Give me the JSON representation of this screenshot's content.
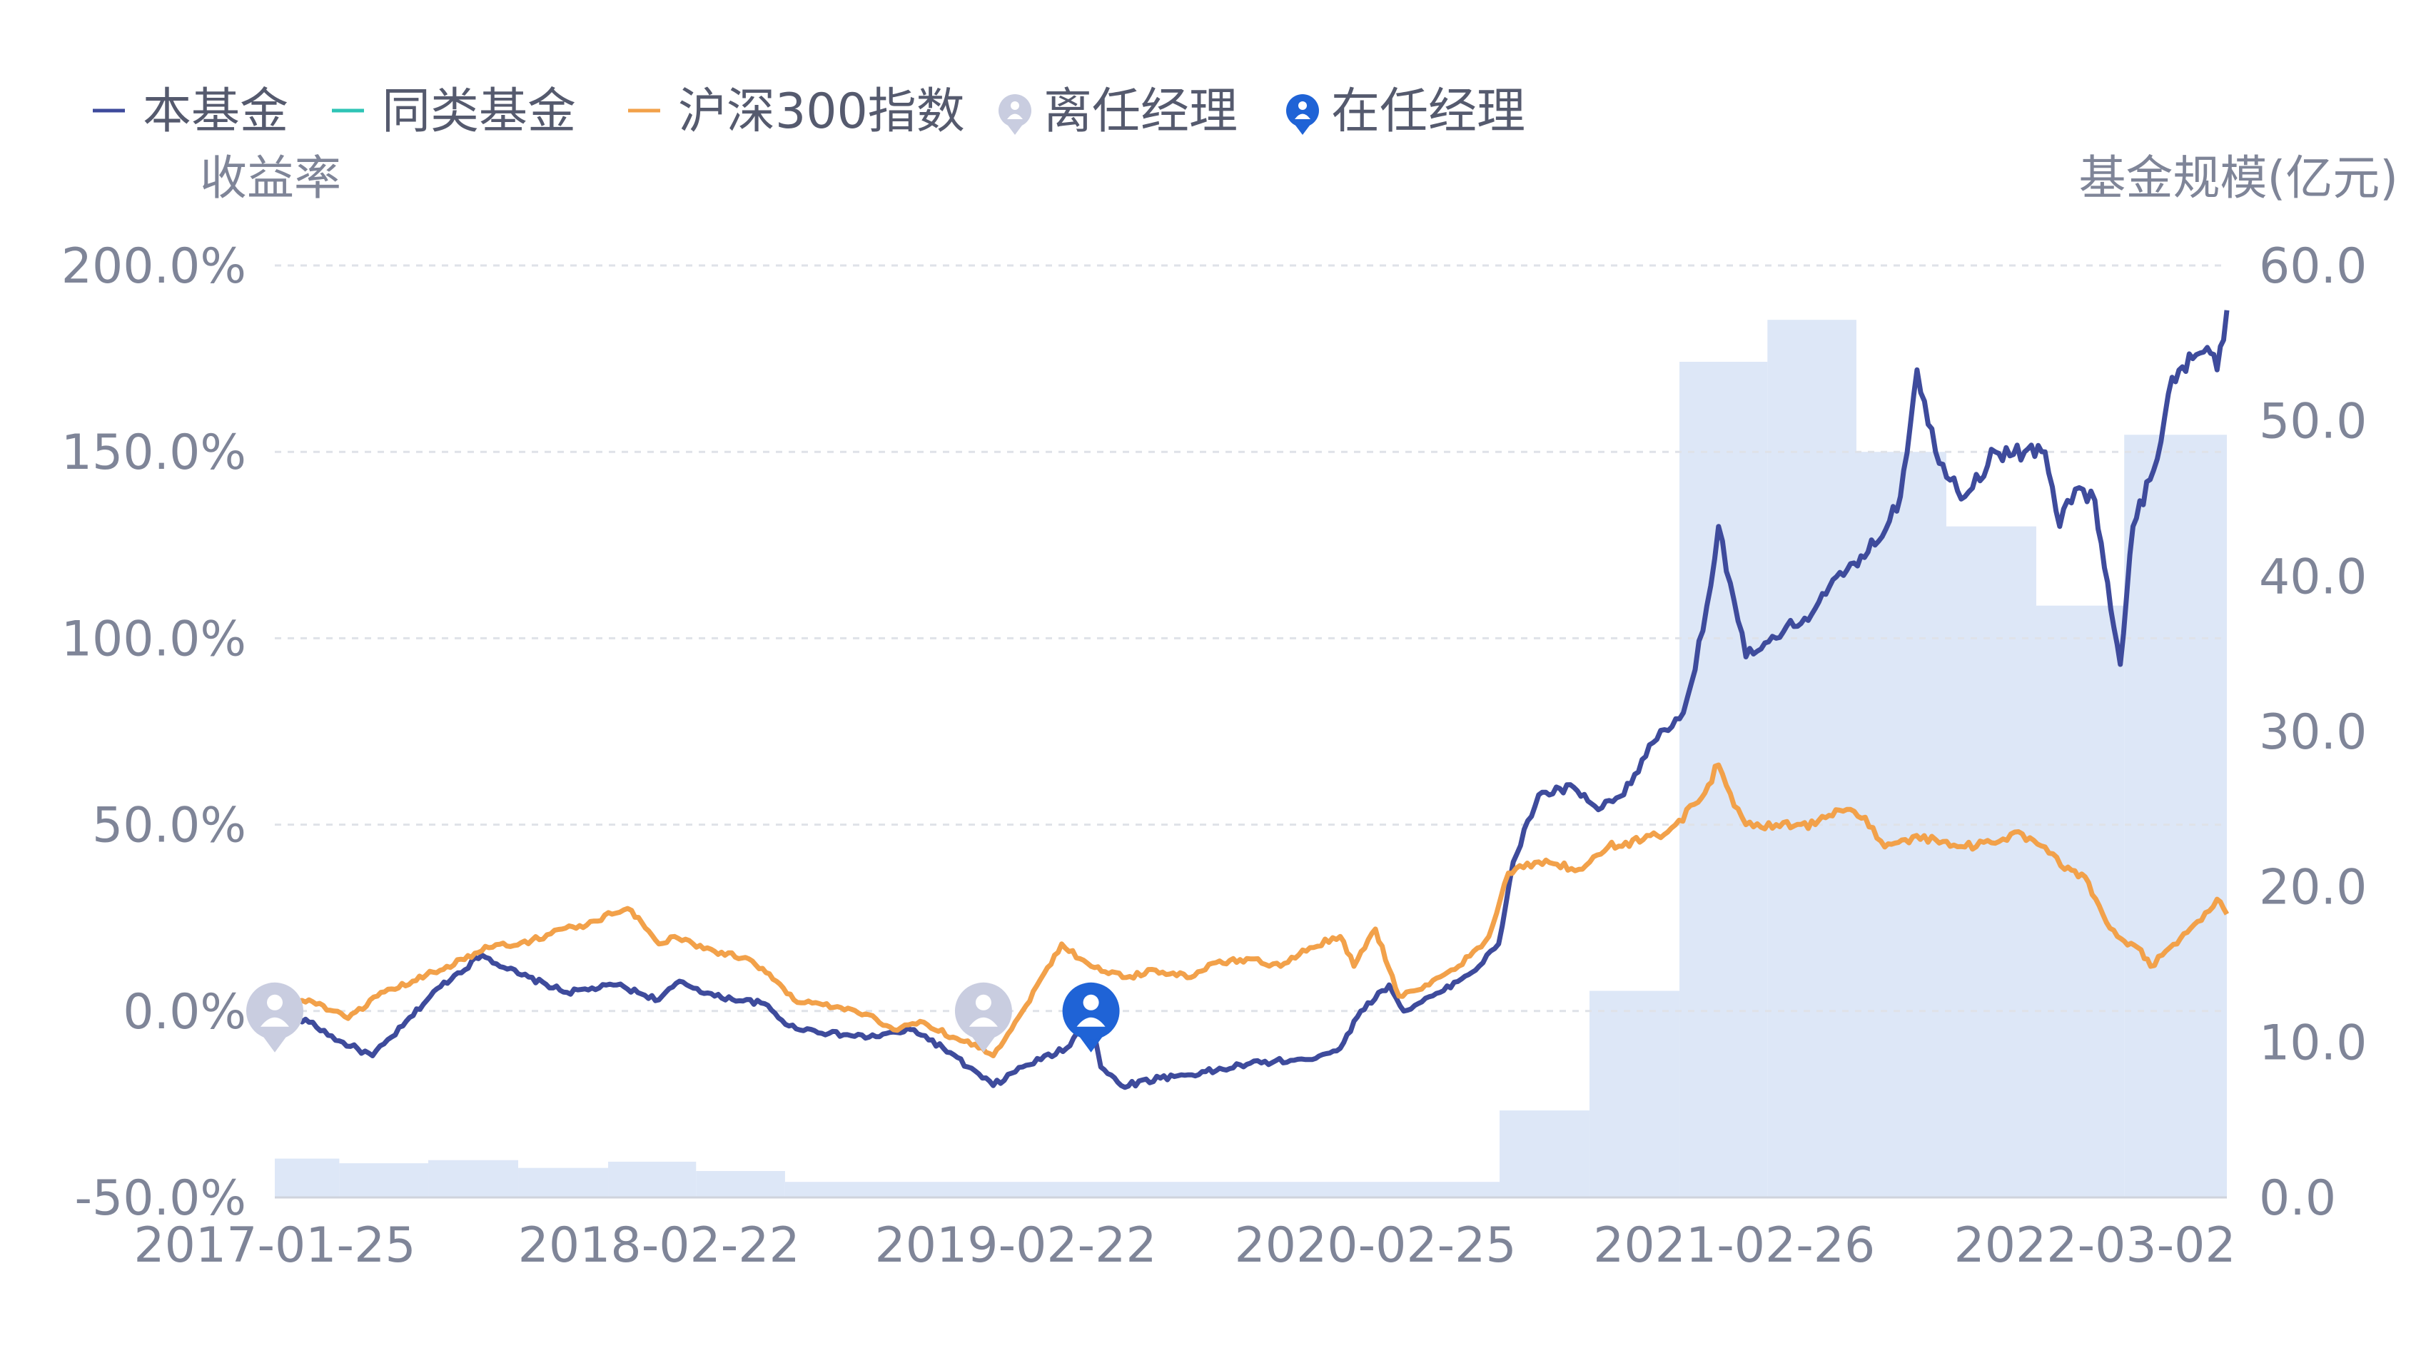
{
  "legend": [
    {
      "key": "fund",
      "label": "本基金",
      "color": "#3e4b9c",
      "type": "line"
    },
    {
      "key": "peer",
      "label": "同类基金",
      "color": "#2ec4b6",
      "type": "line"
    },
    {
      "key": "index",
      "label": "沪深300指数",
      "color": "#f2a14a",
      "type": "line"
    },
    {
      "key": "former",
      "label": "离任经理",
      "color": "#c9cde0",
      "type": "marker"
    },
    {
      "key": "current",
      "label": "在任经理",
      "color": "#1f63d6",
      "type": "marker"
    }
  ],
  "chart_data": {
    "type": "line",
    "left_axis_label": "收益率",
    "right_axis_label": "基金规模(亿元)",
    "left_axis": {
      "min": -50,
      "max": 200,
      "ticks": [
        "200.0%",
        "150.0%",
        "100.0%",
        "50.0%",
        "0.0%",
        "-50.0%"
      ],
      "tick_values": [
        200,
        150,
        100,
        50,
        0,
        -50
      ]
    },
    "right_axis": {
      "min": 0,
      "max": 60,
      "ticks": [
        "60.0",
        "50.0",
        "40.0",
        "30.0",
        "20.0",
        "10.0",
        "0.0"
      ],
      "tick_values": [
        60,
        50,
        40,
        30,
        20,
        10,
        0
      ]
    },
    "x_ticks": [
      "2017-01-25",
      "2018-02-22",
      "2019-02-22",
      "2020-02-25",
      "2021-02-26",
      "2022-03-02"
    ],
    "x_tick_dates": [
      "2017-01-25",
      "2018-02-22",
      "2019-02-22",
      "2020-02-25",
      "2021-02-26",
      "2022-03-02"
    ],
    "x_range": [
      "2017-01-25",
      "2022-07-15"
    ],
    "grid": true,
    "legend_position": "top-left",
    "series": [
      {
        "name": "本基金",
        "color": "#3e4b9c",
        "points": [
          [
            "2017-01-25",
            0
          ],
          [
            "2017-03-01",
            -3
          ],
          [
            "2017-04-01",
            -8
          ],
          [
            "2017-05-05",
            -12
          ],
          [
            "2017-06-05",
            -4
          ],
          [
            "2017-07-10",
            6
          ],
          [
            "2017-08-25",
            15
          ],
          [
            "2017-10-01",
            10
          ],
          [
            "2017-11-20",
            5
          ],
          [
            "2018-01-10",
            7
          ],
          [
            "2018-02-22",
            3
          ],
          [
            "2018-03-15",
            8
          ],
          [
            "2018-04-20",
            4
          ],
          [
            "2018-06-10",
            2
          ],
          [
            "2018-07-05",
            -4
          ],
          [
            "2018-08-15",
            -6
          ],
          [
            "2018-09-25",
            -7
          ],
          [
            "2018-11-10",
            -5
          ],
          [
            "2018-12-10",
            -10
          ],
          [
            "2019-01-04",
            -15
          ],
          [
            "2019-01-30",
            -20
          ],
          [
            "2019-03-01",
            -15
          ],
          [
            "2019-04-15",
            -10
          ],
          [
            "2019-05-10",
            -1
          ],
          [
            "2019-05-20",
            -15
          ],
          [
            "2019-06-10",
            -20
          ],
          [
            "2019-07-20",
            -18
          ],
          [
            "2019-09-15",
            -16
          ],
          [
            "2019-10-20",
            -14
          ],
          [
            "2019-12-15",
            -13
          ],
          [
            "2020-01-20",
            -10
          ],
          [
            "2020-02-10",
            0
          ],
          [
            "2020-03-10",
            7
          ],
          [
            "2020-03-25",
            0
          ],
          [
            "2020-05-01",
            5
          ],
          [
            "2020-06-10",
            12
          ],
          [
            "2020-06-30",
            18
          ],
          [
            "2020-07-15",
            40
          ],
          [
            "2020-08-10",
            58
          ],
          [
            "2020-09-15",
            60
          ],
          [
            "2020-10-10",
            54
          ],
          [
            "2020-11-05",
            58
          ],
          [
            "2020-12-05",
            72
          ],
          [
            "2021-01-05",
            80
          ],
          [
            "2021-01-25",
            102
          ],
          [
            "2021-02-10",
            130
          ],
          [
            "2021-02-26",
            110
          ],
          [
            "2021-03-10",
            95
          ],
          [
            "2021-04-10",
            100
          ],
          [
            "2021-05-20",
            108
          ],
          [
            "2021-06-25",
            120
          ],
          [
            "2021-07-20",
            125
          ],
          [
            "2021-08-15",
            138
          ],
          [
            "2021-09-01",
            172
          ],
          [
            "2021-09-20",
            150
          ],
          [
            "2021-10-20",
            138
          ],
          [
            "2021-11-20",
            150
          ],
          [
            "2021-12-20",
            150
          ],
          [
            "2022-01-10",
            150
          ],
          [
            "2022-01-25",
            130
          ],
          [
            "2022-02-10",
            140
          ],
          [
            "2022-03-02",
            137
          ],
          [
            "2022-03-15",
            115
          ],
          [
            "2022-03-28",
            93
          ],
          [
            "2022-04-10",
            130
          ],
          [
            "2022-05-01",
            145
          ],
          [
            "2022-05-20",
            170
          ],
          [
            "2022-06-10",
            175
          ],
          [
            "2022-06-25",
            178
          ],
          [
            "2022-07-05",
            172
          ],
          [
            "2022-07-15",
            188
          ]
        ]
      },
      {
        "name": "同类基金",
        "color": "#2ec4b6",
        "points": []
      },
      {
        "name": "沪深300指数",
        "color": "#f2a14a",
        "points": [
          [
            "2017-01-25",
            2
          ],
          [
            "2017-03-01",
            3
          ],
          [
            "2017-04-10",
            -2
          ],
          [
            "2017-05-10",
            4
          ],
          [
            "2017-06-15",
            8
          ],
          [
            "2017-07-20",
            12
          ],
          [
            "2017-09-01",
            17
          ],
          [
            "2017-10-15",
            19
          ],
          [
            "2017-11-15",
            22
          ],
          [
            "2017-12-10",
            23
          ],
          [
            "2018-01-05",
            26
          ],
          [
            "2018-01-25",
            27
          ],
          [
            "2018-02-22",
            18
          ],
          [
            "2018-03-10",
            20
          ],
          [
            "2018-04-20",
            16
          ],
          [
            "2018-05-25",
            14
          ],
          [
            "2018-06-15",
            10
          ],
          [
            "2018-07-10",
            3
          ],
          [
            "2018-08-20",
            1
          ],
          [
            "2018-09-25",
            -1
          ],
          [
            "2018-10-20",
            -5
          ],
          [
            "2018-11-20",
            -3
          ],
          [
            "2018-12-20",
            -7
          ],
          [
            "2019-01-04",
            -8
          ],
          [
            "2019-01-30",
            -12
          ],
          [
            "2019-03-01",
            0
          ],
          [
            "2019-04-10",
            18
          ],
          [
            "2019-05-10",
            12
          ],
          [
            "2019-06-15",
            9
          ],
          [
            "2019-07-15",
            11
          ],
          [
            "2019-08-20",
            9
          ],
          [
            "2019-09-15",
            13
          ],
          [
            "2019-10-20",
            14
          ],
          [
            "2019-11-20",
            12
          ],
          [
            "2019-12-20",
            17
          ],
          [
            "2020-01-20",
            20
          ],
          [
            "2020-02-03",
            12
          ],
          [
            "2020-02-25",
            22
          ],
          [
            "2020-03-20",
            4
          ],
          [
            "2020-04-20",
            7
          ],
          [
            "2020-05-20",
            12
          ],
          [
            "2020-06-20",
            20
          ],
          [
            "2020-07-10",
            37
          ],
          [
            "2020-08-10",
            40
          ],
          [
            "2020-09-20",
            38
          ],
          [
            "2020-10-20",
            44
          ],
          [
            "2020-11-25",
            46
          ],
          [
            "2020-12-20",
            48
          ],
          [
            "2021-01-20",
            56
          ],
          [
            "2021-02-10",
            66
          ],
          [
            "2021-02-26",
            55
          ],
          [
            "2021-03-10",
            50
          ],
          [
            "2021-04-10",
            50
          ],
          [
            "2021-05-20",
            50
          ],
          [
            "2021-06-10",
            54
          ],
          [
            "2021-07-10",
            52
          ],
          [
            "2021-07-30",
            44
          ],
          [
            "2021-08-20",
            46
          ],
          [
            "2021-09-20",
            46
          ],
          [
            "2021-10-20",
            44
          ],
          [
            "2021-11-20",
            45
          ],
          [
            "2021-12-10",
            48
          ],
          [
            "2022-01-10",
            44
          ],
          [
            "2022-01-30",
            38
          ],
          [
            "2022-02-20",
            36
          ],
          [
            "2022-03-10",
            26
          ],
          [
            "2022-03-25",
            20
          ],
          [
            "2022-04-15",
            17
          ],
          [
            "2022-04-28",
            12
          ],
          [
            "2022-05-10",
            15
          ],
          [
            "2022-05-25",
            18
          ],
          [
            "2022-06-15",
            24
          ],
          [
            "2022-07-05",
            30
          ],
          [
            "2022-07-15",
            26
          ]
        ]
      }
    ],
    "fund_size_bars": [
      {
        "start": "2017-01-25",
        "end": "2017-04-01",
        "value": 2.5
      },
      {
        "start": "2017-04-01",
        "end": "2017-07-01",
        "value": 2.2
      },
      {
        "start": "2017-07-01",
        "end": "2017-10-01",
        "value": 2.4
      },
      {
        "start": "2017-10-01",
        "end": "2018-01-01",
        "value": 1.9
      },
      {
        "start": "2018-01-01",
        "end": "2018-04-01",
        "value": 2.3
      },
      {
        "start": "2018-04-01",
        "end": "2018-07-01",
        "value": 1.7
      },
      {
        "start": "2018-07-01",
        "end": "2020-07-01",
        "value": 1.0
      },
      {
        "start": "2020-07-01",
        "end": "2020-10-01",
        "value": 5.6
      },
      {
        "start": "2020-10-01",
        "end": "2021-01-01",
        "value": 13.3
      },
      {
        "start": "2021-01-01",
        "end": "2021-04-01",
        "value": 53.8
      },
      {
        "start": "2021-04-01",
        "end": "2021-07-01",
        "value": 56.5
      },
      {
        "start": "2021-07-01",
        "end": "2021-10-01",
        "value": 48.0
      },
      {
        "start": "2021-10-01",
        "end": "2022-01-01",
        "value": 43.2
      },
      {
        "start": "2022-01-01",
        "end": "2022-04-01",
        "value": 38.1
      },
      {
        "start": "2022-04-01",
        "end": "2022-07-15",
        "value": 49.1
      }
    ],
    "manager_markers": [
      {
        "date": "2017-01-25",
        "type": "former"
      },
      {
        "date": "2019-01-20",
        "type": "former"
      },
      {
        "date": "2019-05-10",
        "type": "current"
      }
    ]
  }
}
